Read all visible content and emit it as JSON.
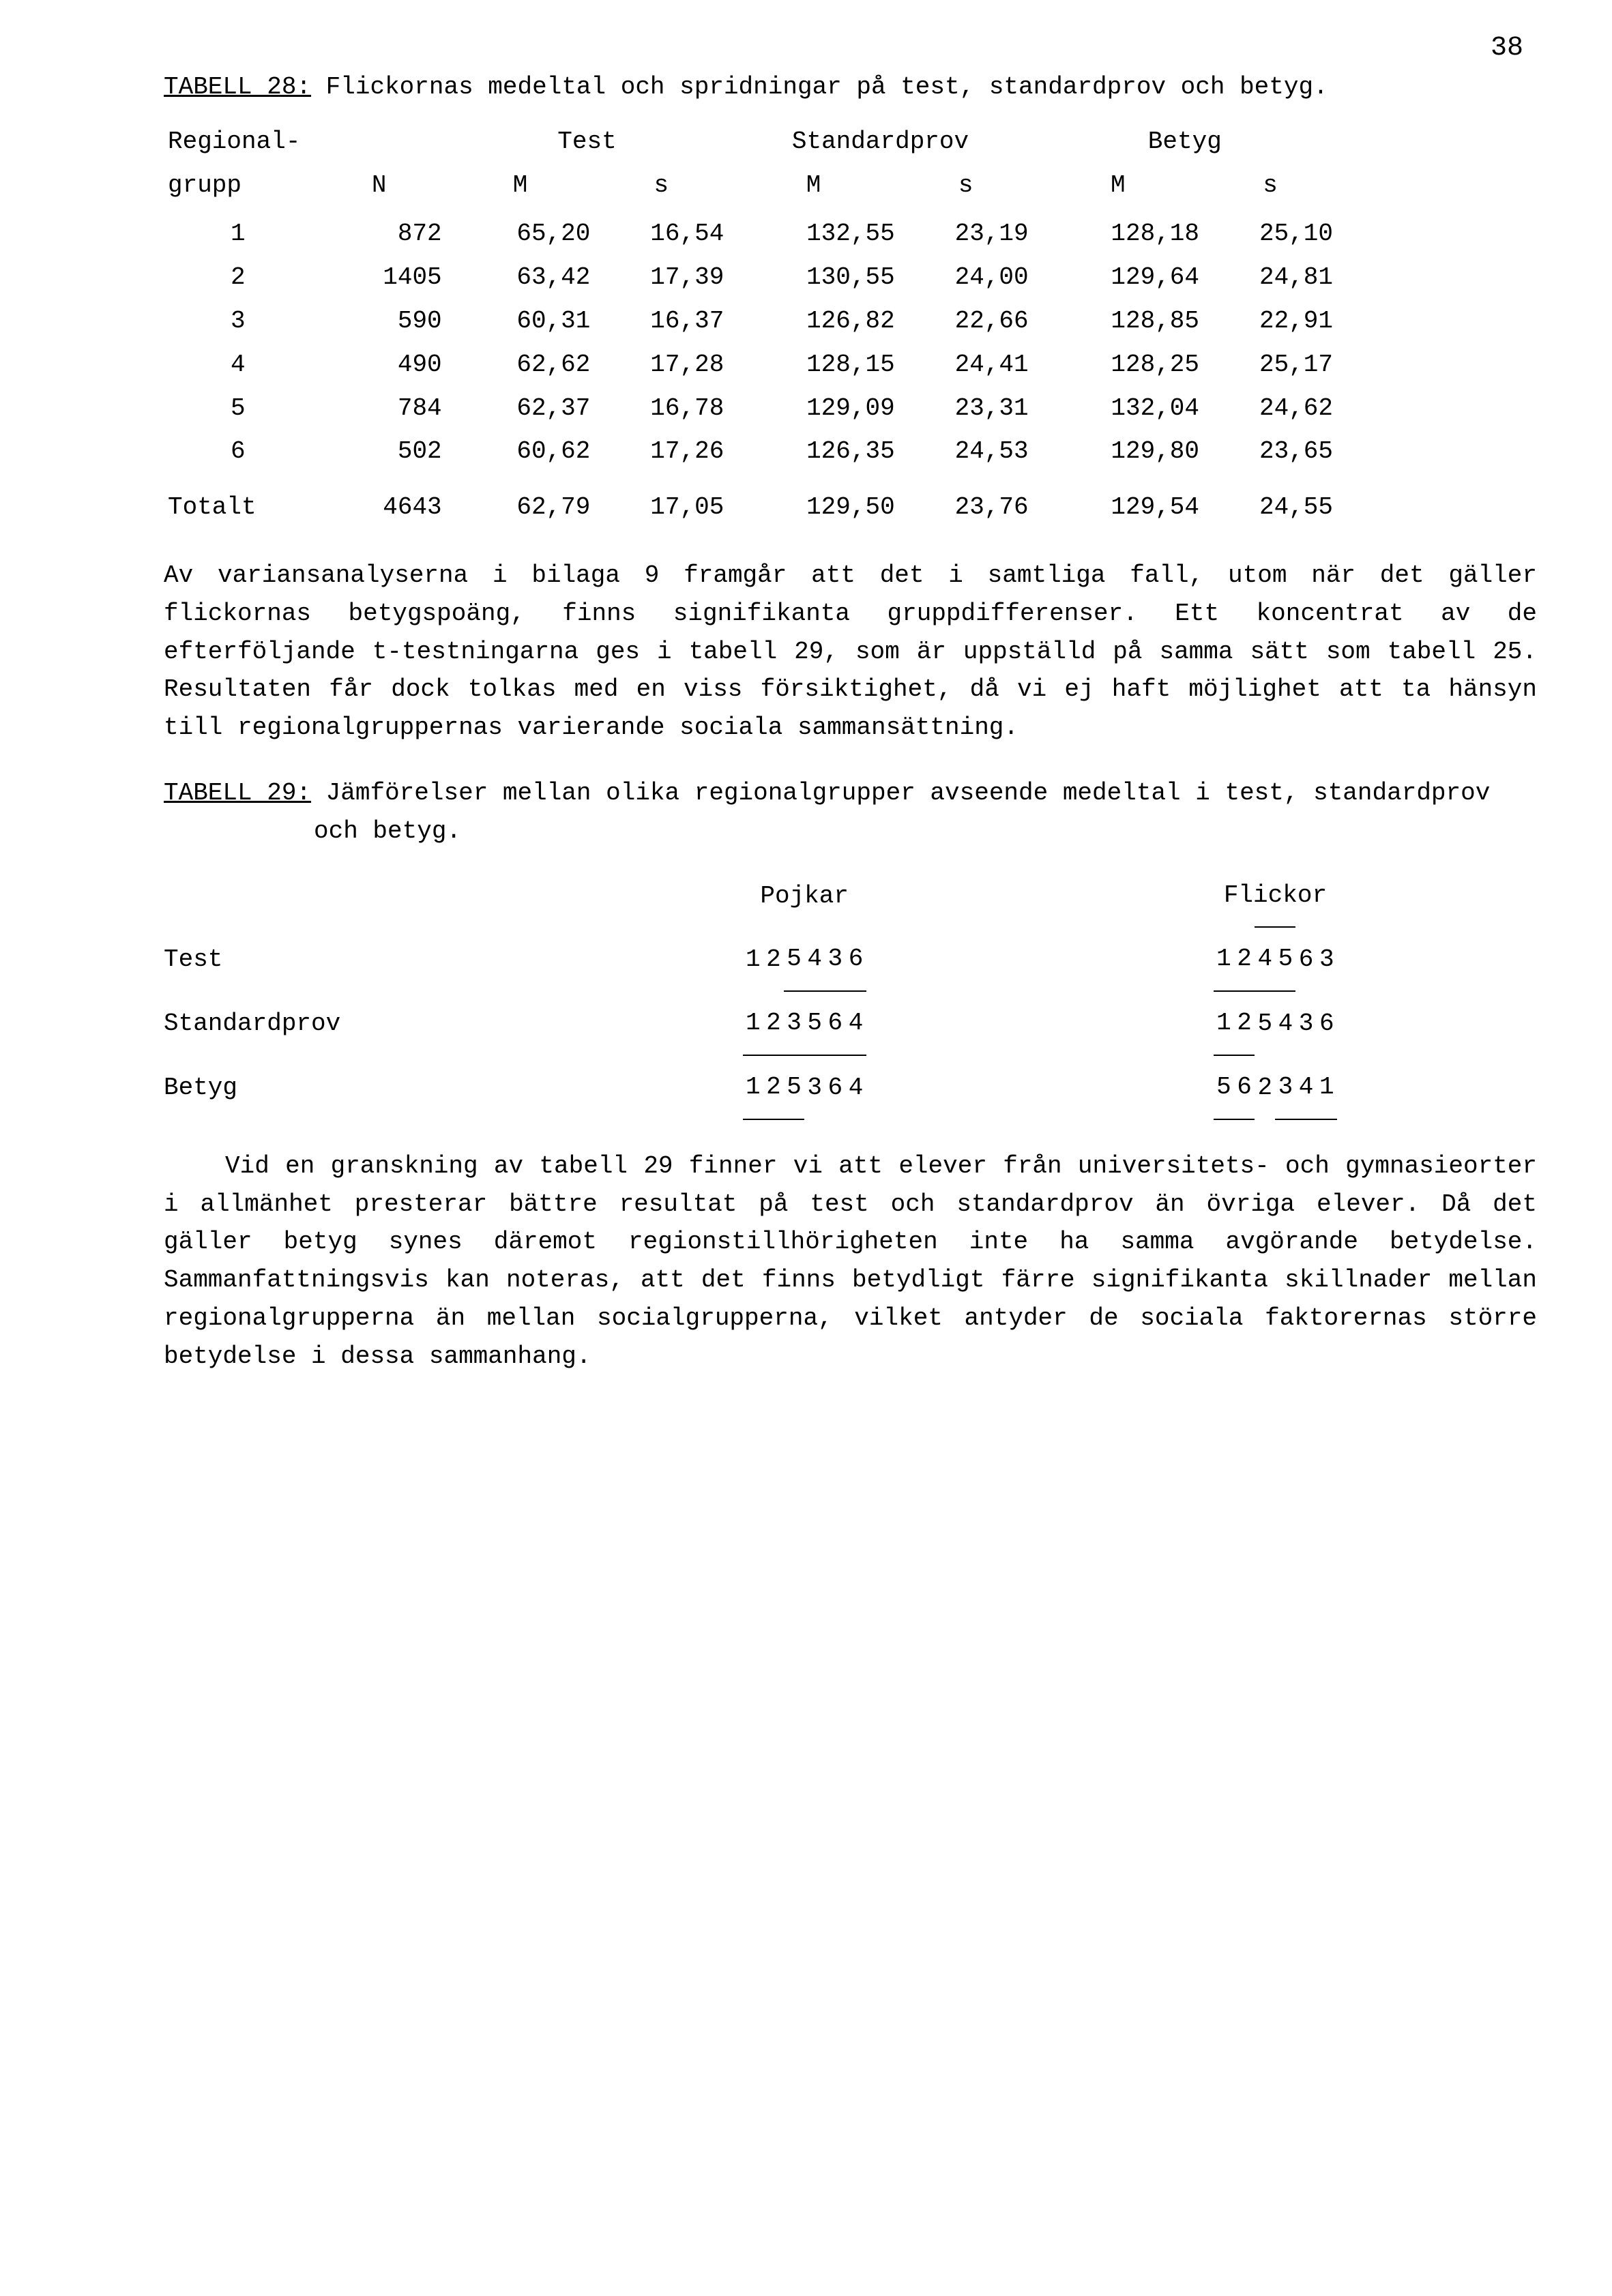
{
  "page_number": "38",
  "table28": {
    "label": "TABELL 28:",
    "title": "Flickornas medeltal och spridningar på test, standardprov och betyg.",
    "col_groups": [
      "Test",
      "Standardprov",
      "Betyg"
    ],
    "row_header_1": "Regional-",
    "row_header_2": "grupp",
    "sub_headers": [
      "N",
      "M",
      "s",
      "M",
      "s",
      "M",
      "s"
    ],
    "rows": [
      {
        "g": "1",
        "n": "872",
        "tm": "65,20",
        "ts": "16,54",
        "sm": "132,55",
        "ss": "23,19",
        "bm": "128,18",
        "bs": "25,10"
      },
      {
        "g": "2",
        "n": "1405",
        "tm": "63,42",
        "ts": "17,39",
        "sm": "130,55",
        "ss": "24,00",
        "bm": "129,64",
        "bs": "24,81"
      },
      {
        "g": "3",
        "n": "590",
        "tm": "60,31",
        "ts": "16,37",
        "sm": "126,82",
        "ss": "22,66",
        "bm": "128,85",
        "bs": "22,91"
      },
      {
        "g": "4",
        "n": "490",
        "tm": "62,62",
        "ts": "17,28",
        "sm": "128,15",
        "ss": "24,41",
        "bm": "128,25",
        "bs": "25,17"
      },
      {
        "g": "5",
        "n": "784",
        "tm": "62,37",
        "ts": "16,78",
        "sm": "129,09",
        "ss": "23,31",
        "bm": "132,04",
        "bs": "24,62"
      },
      {
        "g": "6",
        "n": "502",
        "tm": "60,62",
        "ts": "17,26",
        "sm": "126,35",
        "ss": "24,53",
        "bm": "129,80",
        "bs": "23,65"
      }
    ],
    "total": {
      "g": "Totalt",
      "n": "4643",
      "tm": "62,79",
      "ts": "17,05",
      "sm": "129,50",
      "ss": "23,76",
      "bm": "129,54",
      "bs": "24,55"
    }
  },
  "para1": "Av variansanalyserna i bilaga 9 framgår att det i samtliga fall, utom när det gäller flickornas betygspoäng, finns signifikanta gruppdifferenser. Ett koncentrat av de efterföljande t-testningarna ges i tabell 29, som är uppställd på samma sätt som tabell 25. Resultaten får dock tolkas med en viss försiktighet, då vi ej haft möjlighet att ta hänsyn till regionalgruppernas varierande sociala sammansättning.",
  "table29": {
    "label": "TABELL 29:",
    "title": "Jämförelser mellan olika regionalgrupper avseende medeltal i test, standardprov och betyg.",
    "group_labels": [
      "Pojkar",
      "Flickor"
    ],
    "row_labels": [
      "Test",
      "Standardprov",
      "Betyg"
    ],
    "pojkar": {
      "test": [
        {
          "v": "1"
        },
        {
          "v": "2"
        },
        {
          "v": "5",
          "b": 1
        },
        {
          "v": "4",
          "b": 1
        },
        {
          "v": "3",
          "b": 1
        },
        {
          "v": "6",
          "b": 1
        }
      ],
      "standardprov": [
        {
          "v": "1"
        },
        {
          "v": "2"
        },
        {
          "v": "3",
          "b": 1
        },
        {
          "v": "5",
          "b": 1
        },
        {
          "v": "6",
          "b": 1
        },
        {
          "v": "4",
          "b": 1
        }
      ],
      "betyg": [
        {
          "v": "1",
          "b": 1,
          "t": 1
        },
        {
          "v": "2",
          "b": 1,
          "t": 1
        },
        {
          "v": "5",
          "b": 1,
          "t": 1
        },
        {
          "v": "3",
          "t": 1
        },
        {
          "v": "6"
        },
        {
          "v": "4"
        }
      ]
    },
    "flickor": {
      "test": [
        {
          "v": "1",
          "b": 1
        },
        {
          "v": "2",
          "b": 1
        },
        {
          "v": "4",
          "t": 1
        },
        {
          "v": "5",
          "t": 1
        },
        {
          "v": "6"
        },
        {
          "v": "3"
        }
      ],
      "standardprov": [
        {
          "v": "1",
          "b": 1
        },
        {
          "v": "2",
          "b": 1
        },
        {
          "v": "5",
          "t": 1
        },
        {
          "v": "4",
          "t": 1
        },
        {
          "v": "3"
        },
        {
          "v": "6"
        }
      ],
      "betyg": [
        {
          "v": "5",
          "b": 1
        },
        {
          "v": "6",
          "b": 1
        },
        {
          "v": "2"
        },
        {
          "v": "3",
          "b": 1
        },
        {
          "v": "4",
          "b": 1
        },
        {
          "v": "1",
          "b": 1
        }
      ]
    }
  },
  "para2": "Vid en granskning av tabell 29 finner vi att elever från universitets- och gymnasieorter i allmänhet presterar bättre resultat på test och standardprov än övriga elever. Då det gäller betyg synes däremot regionstillhörigheten inte ha samma avgörande betydelse. Sammanfattningsvis kan noteras, att det finns betydligt färre signifikanta skillnader mellan regionalgrupperna än mellan socialgrupperna, vilket antyder de sociala faktorernas större betydelse i dessa sammanhang."
}
